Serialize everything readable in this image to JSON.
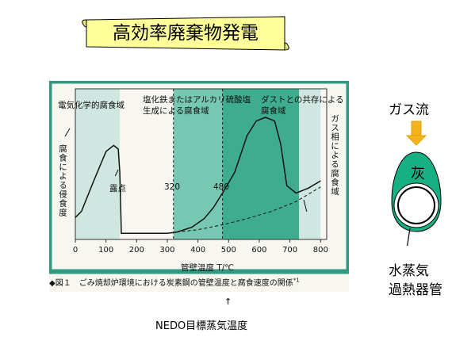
{
  "title": "高効率廃棄物発電",
  "chart_data": {
    "type": "line",
    "title": "",
    "xlabel": "管壁温度 T/℃",
    "ylabel": "腐食による侵食度",
    "xlim": [
      0,
      820
    ],
    "x_ticks": [
      0,
      100,
      200,
      300,
      400,
      500,
      600,
      700,
      800
    ],
    "grid": false,
    "series": [
      {
        "style": "solid",
        "x": [
          0,
          20,
          60,
          100,
          125,
          140,
          145,
          150,
          200,
          300,
          330,
          380,
          420,
          450,
          480,
          520,
          560,
          590,
          620,
          650,
          670,
          690,
          720,
          760,
          800
        ],
        "y": [
          0.18,
          0.23,
          0.48,
          0.72,
          0.77,
          0.74,
          0.55,
          0.05,
          0.05,
          0.05,
          0.06,
          0.1,
          0.17,
          0.26,
          0.38,
          0.55,
          0.85,
          0.97,
          1.0,
          0.97,
          0.78,
          0.44,
          0.38,
          0.42,
          0.48
        ]
      },
      {
        "style": "dashed",
        "x": [
          330,
          400,
          480,
          560,
          640,
          720,
          760,
          800
        ],
        "y": [
          0.06,
          0.08,
          0.12,
          0.17,
          0.23,
          0.31,
          0.37,
          0.43
        ]
      }
    ],
    "regions": [
      {
        "label": "電気化学的腐食域",
        "x_start": 0,
        "x_end": 145
      },
      {
        "label": "塩化鉄またはアルカリ硫酸塩生成による腐食域",
        "x_start": 320,
        "x_end": 480
      },
      {
        "label": "ダストとの共存による腐食域",
        "x_start": 480,
        "x_end": 730
      },
      {
        "label": "ガス相による腐食域",
        "x_start": 730,
        "x_end": 800
      }
    ],
    "reference_lines": [
      {
        "x": 320,
        "label": "320"
      },
      {
        "x": 480,
        "label": "480"
      }
    ],
    "annotations": [
      "露点"
    ],
    "caption": "◆図１　ごみ焼却炉環境における炭素鋼の管壁温度と腐食速度の関係",
    "caption_note": "*1"
  },
  "region_labels": {
    "left": "電気化学的腐食域",
    "mid_line1": "塩化鉄またはアルカリ硫酸塩",
    "mid_line2": "生成による腐食域",
    "right_line1": "ダストとの共存による",
    "right_line2": "腐食域",
    "far_right": "ガス相による腐食域"
  },
  "dew_point": "露点",
  "ref_320": "320",
  "ref_480": "480",
  "axis_ylabel": "腐食による侵食度",
  "axis_xlabel": "管壁温度 T/℃",
  "target_note": "NEDO目標蒸気温度",
  "gas_flow_label": "ガス流",
  "ash_label": "灰",
  "tube_label_line1": "水蒸気",
  "tube_label_line2": "過熱器管",
  "colors": {
    "scroll": "#ffff99",
    "panel_border": "#2f9a80",
    "region_light": "#cfe7e0",
    "region_mid": "#77c8b2",
    "region_dark": "#3ead8f",
    "arrow": "#f2b31c",
    "tube_fill": "#16b082",
    "tube_outline": "#000000"
  }
}
